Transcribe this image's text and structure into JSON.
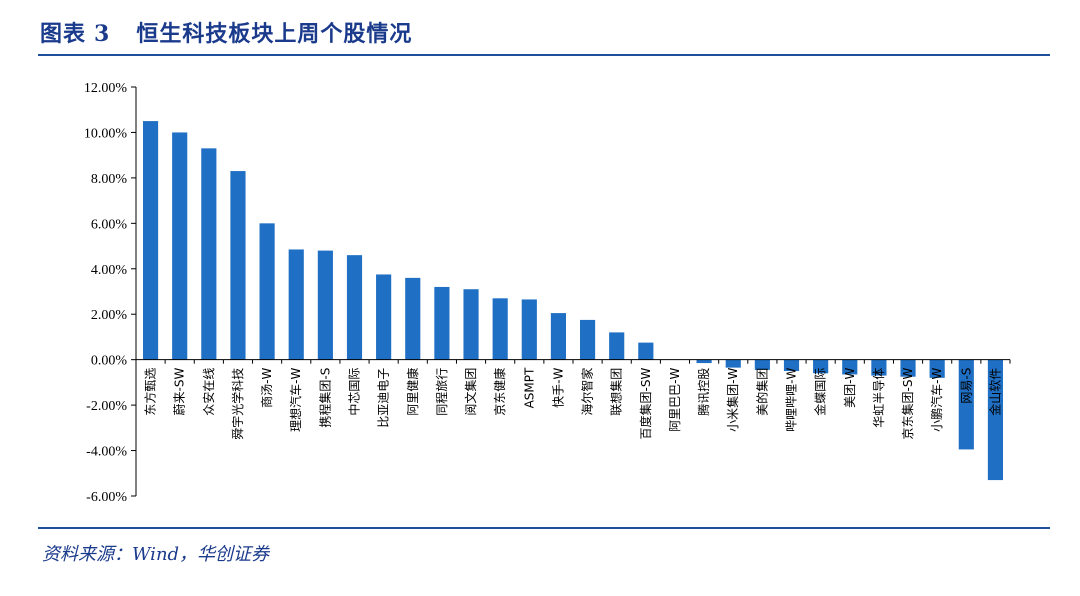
{
  "figure": {
    "label": "图表",
    "number": "3",
    "title": "恒生科技板块上周个股情况"
  },
  "source": "资料来源：Wind，华创证券",
  "colors": {
    "bar": "#1f6fc4",
    "axis": "#000000",
    "title": "#1a3a8c",
    "rule": "#1f4f9a"
  },
  "chart_data": {
    "type": "bar",
    "categories": [
      "东方甄选",
      "蔚来-SW",
      "众安在线",
      "舜宇光学科技",
      "商汤-W",
      "理想汽车-W",
      "携程集团-S",
      "中芯国际",
      "比亚迪电子",
      "阿里健康",
      "同程旅行",
      "阅文集团",
      "京东健康",
      "ASMPT",
      "快手-W",
      "海尔智家",
      "联想集团",
      "百度集团-SW",
      "阿里巴巴-W",
      "腾讯控股",
      "小米集团-W",
      "美的集团",
      "哔哩哔哩-W",
      "金蝶国际",
      "美团-W",
      "华虹半导体",
      "京东集团-SW",
      "小鹏汽车-W",
      "网易-S",
      "金山软件"
    ],
    "values": [
      10.5,
      10.0,
      9.3,
      8.3,
      6.0,
      4.85,
      4.8,
      4.6,
      3.75,
      3.6,
      3.2,
      3.1,
      2.7,
      2.65,
      2.05,
      1.75,
      1.2,
      0.75,
      0.0,
      -0.15,
      -0.35,
      -0.45,
      -0.5,
      -0.6,
      -0.65,
      -0.7,
      -0.75,
      -0.8,
      -3.95,
      -5.3
    ],
    "ylim": [
      -6,
      12
    ],
    "yticks": [
      -6,
      -4,
      -2,
      0,
      2,
      4,
      6,
      8,
      10,
      12
    ],
    "ytick_labels": [
      "-6.00%",
      "-4.00%",
      "-2.00%",
      "0.00%",
      "2.00%",
      "4.00%",
      "6.00%",
      "8.00%",
      "10.00%",
      "12.00%"
    ],
    "grid": false,
    "legend": "none"
  }
}
